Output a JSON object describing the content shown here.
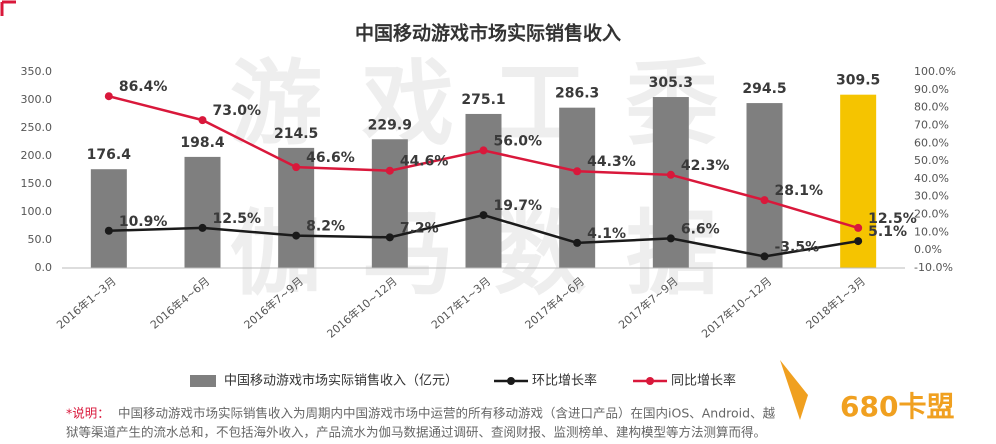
{
  "chart_data": {
    "type": "bar_line",
    "title": "中国移动游戏市场实际销售收入",
    "categories": [
      "2016年1~3月",
      "2016年4~6月",
      "2016年7~9月",
      "2016年10~12月",
      "2017年1~3月",
      "2017年4~6月",
      "2017年7~9月",
      "2017年10~12月",
      "2018年1~3月"
    ],
    "series": [
      {
        "name": "中国移动游戏市场实际销售收入（亿元）",
        "kind": "bar",
        "colors": [
          "#7f7f7f",
          "#7f7f7f",
          "#7f7f7f",
          "#7f7f7f",
          "#7f7f7f",
          "#7f7f7f",
          "#7f7f7f",
          "#7f7f7f",
          "#f5c400"
        ],
        "color": "#7f7f7f",
        "values": [
          176.4,
          198.4,
          214.5,
          229.9,
          275.1,
          286.3,
          305.3,
          294.5,
          309.5
        ]
      },
      {
        "name": "环比增长率",
        "kind": "line",
        "axis": "y2",
        "color": "#1a1a1a",
        "values": [
          10.9,
          12.5,
          8.2,
          7.2,
          19.7,
          4.1,
          6.6,
          -3.5,
          5.1
        ],
        "value_labels": [
          "10.9%",
          "12.5%",
          "8.2%",
          "7.2%",
          "19.7%",
          "4.1%",
          "6.6%",
          "-3.5%",
          "5.1%"
        ]
      },
      {
        "name": "同比增长率",
        "kind": "line",
        "axis": "y2",
        "color": "#d9183b",
        "values": [
          86.4,
          73.0,
          46.6,
          44.6,
          56.0,
          44.3,
          42.3,
          28.1,
          12.5
        ],
        "value_labels": [
          "86.4%",
          "73.0%",
          "46.6%",
          "44.6%",
          "56.0%",
          "44.3%",
          "42.3%",
          "28.1%",
          "12.5%"
        ]
      }
    ],
    "ylim": [
      0,
      350
    ],
    "yticks": [
      {
        "value": 0,
        "label": "0.0"
      },
      {
        "value": 50,
        "label": "50.0"
      },
      {
        "value": 100,
        "label": "100.0"
      },
      {
        "value": 150,
        "label": "150.0"
      },
      {
        "value": 200,
        "label": "200.0"
      },
      {
        "value": 250,
        "label": "250.0"
      },
      {
        "value": 300,
        "label": "300.0"
      },
      {
        "value": 350,
        "label": "350.0"
      }
    ],
    "y2lim": [
      -10,
      100
    ],
    "y2ticks": [
      {
        "value": -10,
        "label": "-10.0%"
      },
      {
        "value": 0,
        "label": "0.0%"
      },
      {
        "value": 10,
        "label": "10.0%"
      },
      {
        "value": 20,
        "label": "20.0%"
      },
      {
        "value": 30,
        "label": "30.0%"
      },
      {
        "value": 40,
        "label": "40.0%"
      },
      {
        "value": 50,
        "label": "50.0%"
      },
      {
        "value": 60,
        "label": "60.0%"
      },
      {
        "value": 70,
        "label": "70.0%"
      },
      {
        "value": 80,
        "label": "80.0%"
      },
      {
        "value": 90,
        "label": "90.0%"
      },
      {
        "value": 100,
        "label": "100.0%"
      }
    ],
    "grid": false,
    "legend": "bottom",
    "watermark": [
      "游戏工委",
      "伽马数据"
    ],
    "note": {
      "label": "*说明：",
      "lines": [
        "中国移动游戏市场实际销售收入为周期内中国游戏市场中运营的所有移动游戏（含进口产品）在国内iOS、Android、越",
        "狱等渠道产生的流水总和，不包括海外收入，产品流水为伽马数据通过调研、查阅财报、监测榜单、建构模型等方法测算而得。"
      ]
    },
    "logo": "680卡盟"
  }
}
